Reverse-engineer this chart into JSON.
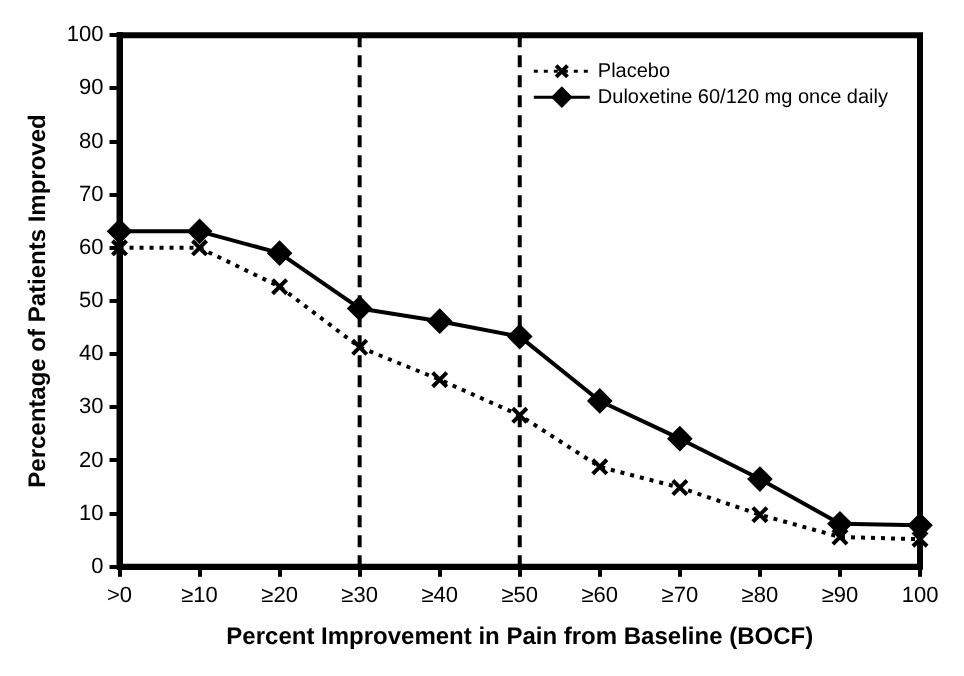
{
  "chart_data": {
    "type": "line",
    "xlabel": "Percent Improvement in Pain from Baseline (BOCF)",
    "ylabel": "Percentage of Patients Improved",
    "categories": [
      ">0",
      "≥10",
      "≥20",
      "≥30",
      "≥40",
      "≥50",
      "≥60",
      "≥70",
      "≥80",
      "≥90",
      "100"
    ],
    "series": [
      {
        "name": "Placebo",
        "color": "#000000",
        "marker": "cross",
        "line_style": "dotted",
        "values": [
          60,
          60,
          52.7,
          41.3,
          35.2,
          28.5,
          18.8,
          14.9,
          9.8,
          5.6,
          5.2
        ]
      },
      {
        "name": "Duloxetine 60/120 mg once daily",
        "color": "#000000",
        "marker": "diamond",
        "line_style": "solid",
        "values": [
          63.1,
          63.1,
          59,
          48.6,
          46.2,
          43.3,
          31.2,
          24.1,
          16.5,
          8.1,
          7.8
        ]
      }
    ],
    "ylim": [
      0,
      100
    ],
    "yticks": [
      0,
      10,
      20,
      30,
      40,
      50,
      60,
      70,
      80,
      90,
      100
    ],
    "grid": false,
    "legend": "top right",
    "ref_lines": [
      {
        "axis": "x",
        "value": "≥30",
        "line_style": "dashed",
        "color": "#000000"
      },
      {
        "axis": "x",
        "value": "≥50",
        "line_style": "dashed",
        "color": "#000000"
      }
    ]
  }
}
